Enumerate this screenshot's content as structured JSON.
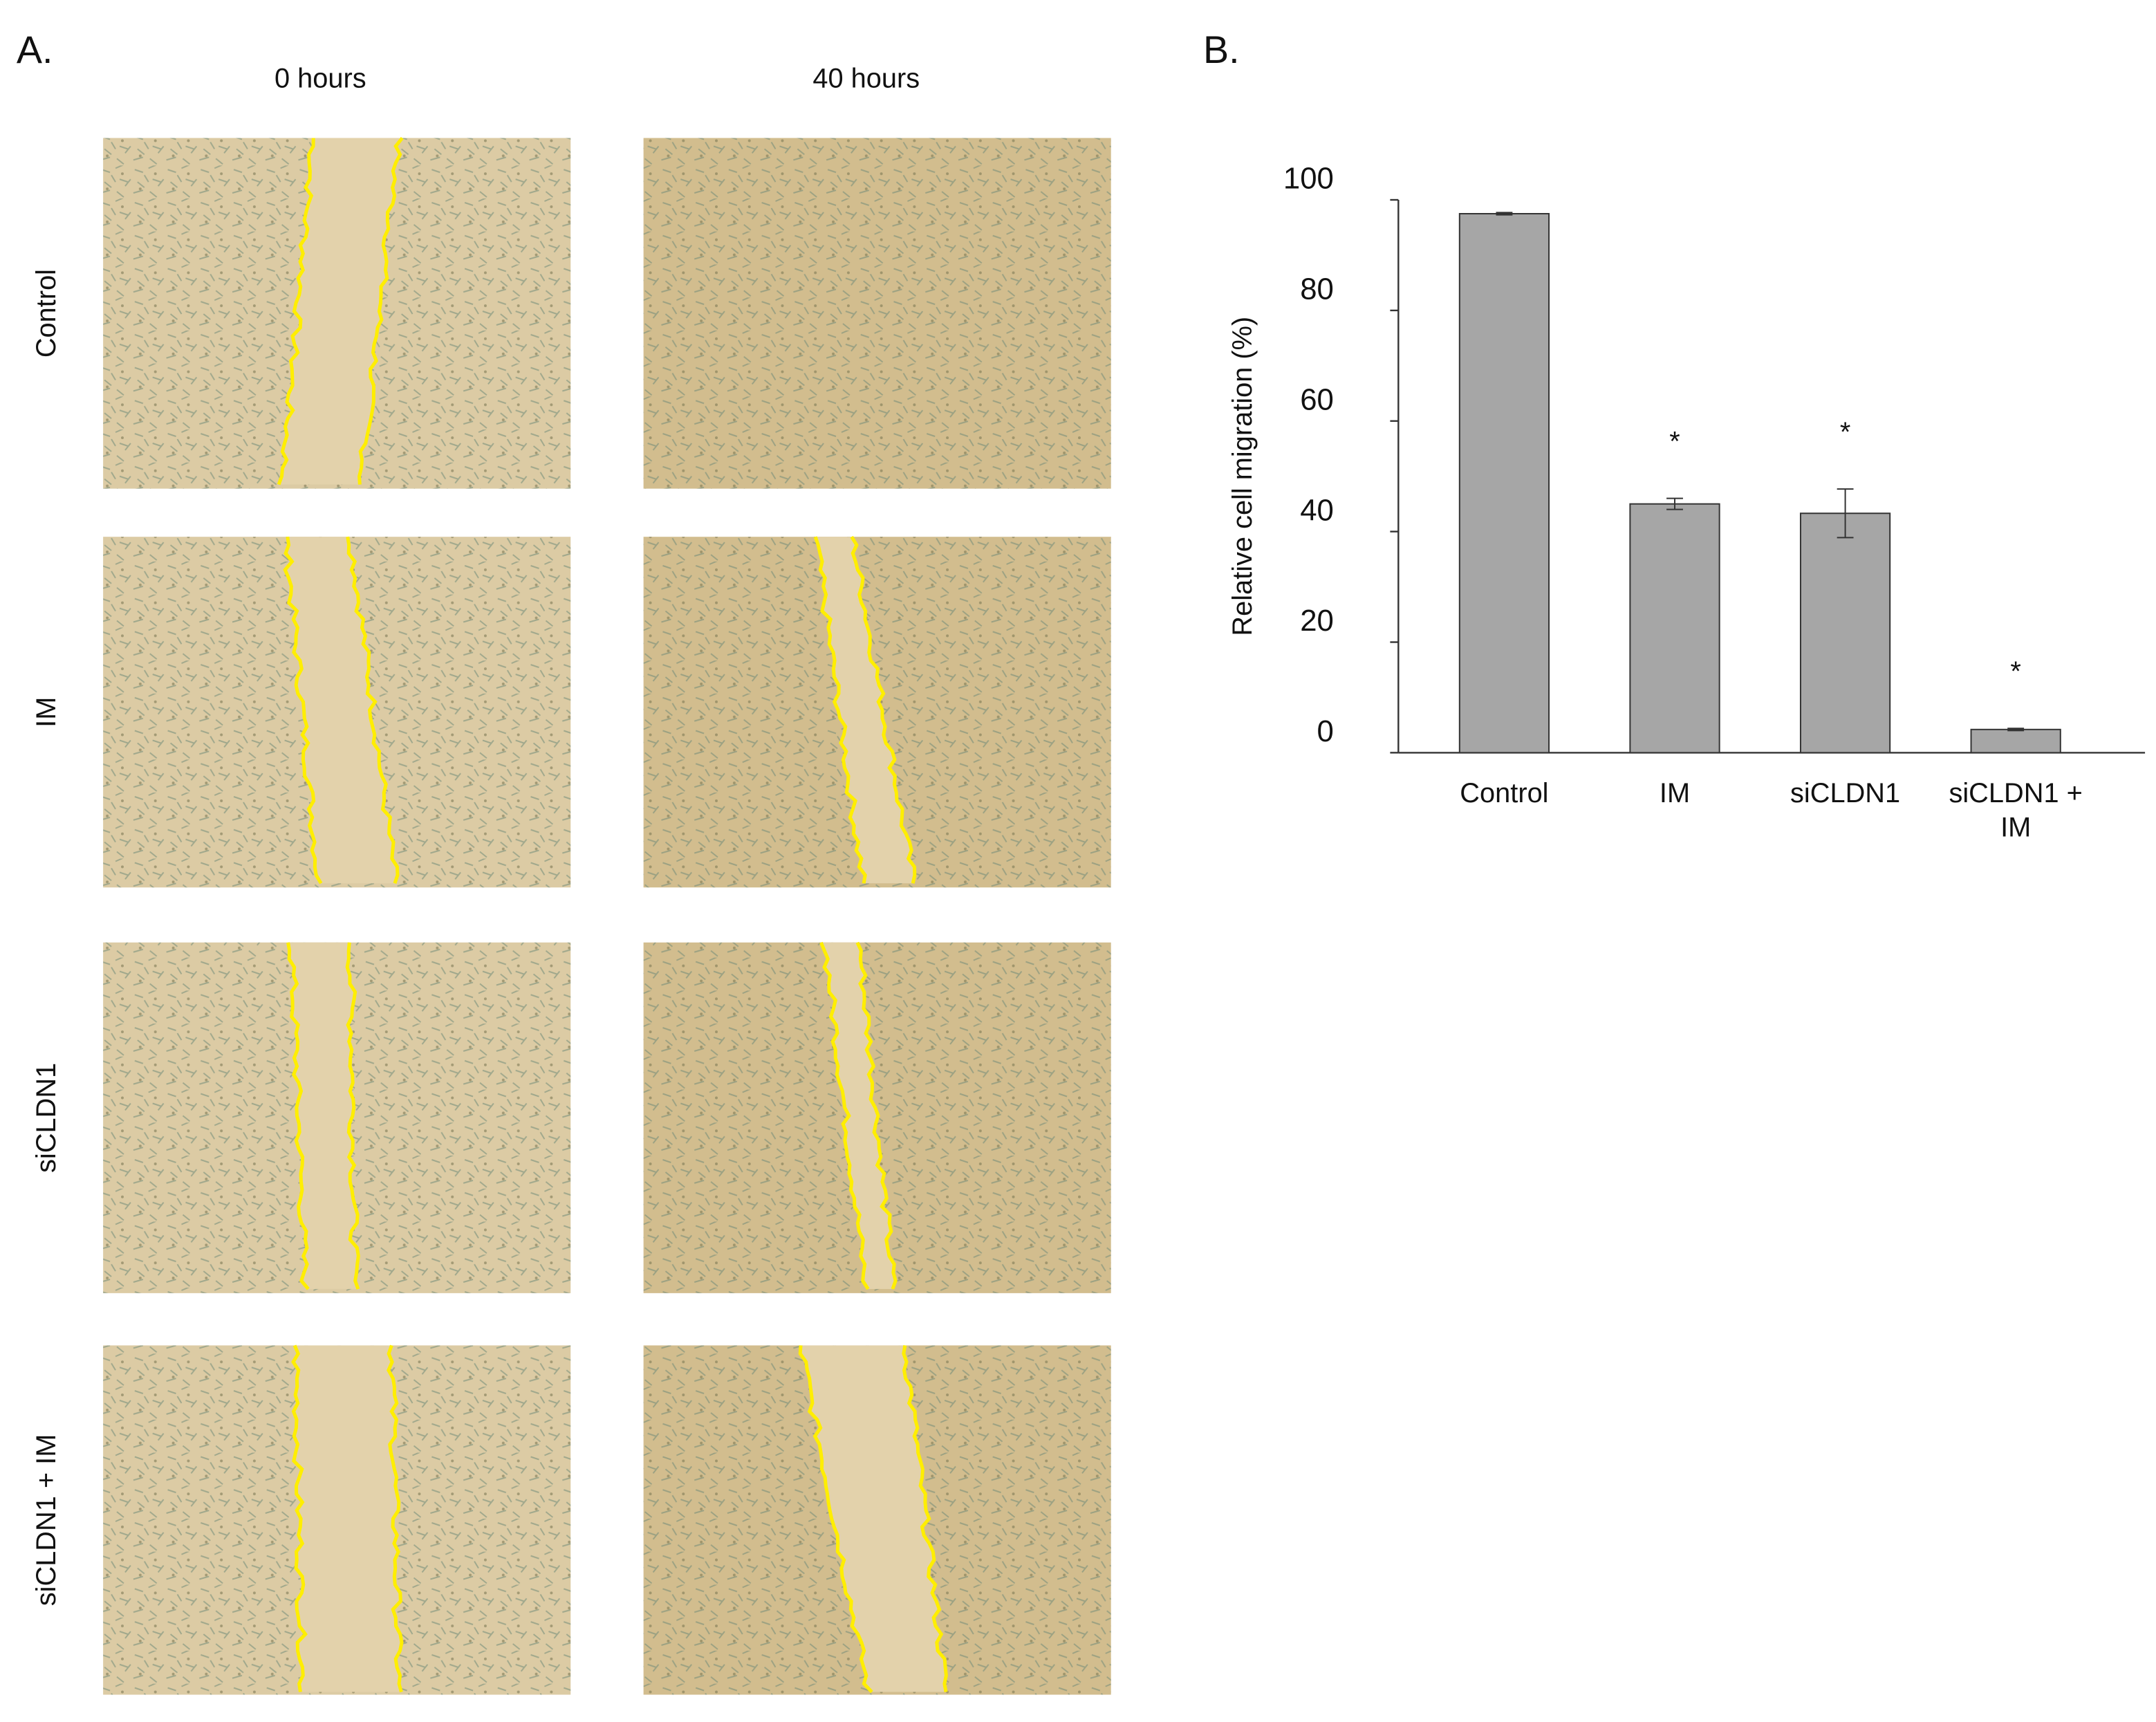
{
  "panel_a": {
    "label": "A.",
    "columns": [
      "0 hours",
      "40 hours"
    ],
    "rows": [
      "Control",
      "IM",
      "siCLDN1",
      "siCLDN1 + IM"
    ]
  },
  "panel_b_label": "B.",
  "chart_data": {
    "type": "bar",
    "y_label": "Relative cell migration (%)",
    "categories": [
      "Control",
      "IM",
      "siCLDN1",
      "siCLDN1 + IM"
    ],
    "values": [
      97.5,
      45,
      43.3,
      4.2
    ],
    "errors": [
      0.2,
      1,
      4.4,
      0.2
    ],
    "value_annotations": [
      null,
      "*",
      "*",
      "*"
    ],
    "color": "#a6a6a6",
    "ylim": [
      0,
      100
    ],
    "yticks": [
      0,
      20,
      40,
      60,
      80,
      100
    ],
    "grid": false
  }
}
